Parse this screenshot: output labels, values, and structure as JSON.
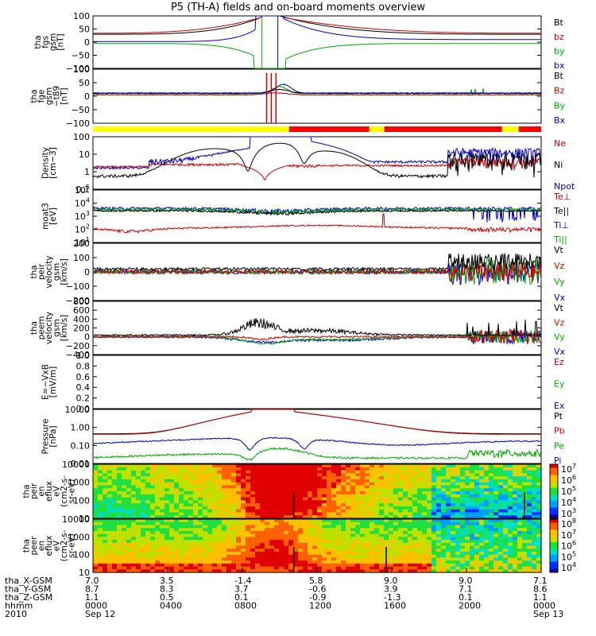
{
  "chart_data": {
    "type": "line",
    "title": "P5 (TH-A) fields and on-board moments overview",
    "panels": [
      {
        "id": "fgs",
        "ylabel": [
          "tha",
          "fgs",
          "gsm",
          "[nT]"
        ],
        "yticks": [
          "100",
          "50",
          "0",
          "−50",
          "−100"
        ],
        "ylim": [
          -100,
          100
        ],
        "scale": "linear",
        "legend": [
          {
            "label": "Bt",
            "color": "#000000"
          },
          {
            "label": "bz",
            "color": "#cc0000"
          },
          {
            "label": "by",
            "color": "#00aa00"
          },
          {
            "label": "bx",
            "color": "#0000cc"
          }
        ]
      },
      {
        "id": "fge",
        "ylabel": [
          "tha",
          "fge",
          "gsm",
          "−t89",
          "[nT]"
        ],
        "yticks": [
          "100",
          "50",
          "0",
          "−50",
          "−100"
        ],
        "ylim": [
          -120,
          100
        ],
        "scale": "linear",
        "legend": [
          {
            "label": "Bt",
            "color": "#000000"
          },
          {
            "label": "Bz",
            "color": "#cc0000"
          },
          {
            "label": "By",
            "color": "#00aa00"
          },
          {
            "label": "Bx",
            "color": "#0000cc"
          }
        ]
      },
      {
        "id": "density",
        "ylabel": [
          "Density",
          "[cm−3]"
        ],
        "yticks": [
          "100",
          "10",
          "1",
          "0.1"
        ],
        "ylim": [
          0.05,
          200
        ],
        "scale": "log",
        "legend": [
          {
            "label": "Ne",
            "color": "#cc0000"
          },
          {
            "label": "Ni",
            "color": "#000000"
          },
          {
            "label": "Npot",
            "color": "#0000cc"
          }
        ]
      },
      {
        "id": "temp",
        "ylabel": [
          "moat3",
          "[eV]"
        ],
        "yticks": [
          "10^5",
          "10^4",
          "10^3",
          "10^2",
          "10^1"
        ],
        "ylim": [
          10,
          100000
        ],
        "scale": "log",
        "legend": [
          {
            "label": "Te⊥",
            "color": "#cc0000"
          },
          {
            "label": "Te||",
            "color": "#000000"
          },
          {
            "label": "Ti⊥",
            "color": "#0000cc"
          },
          {
            "label": "Ti||",
            "color": "#00aa00"
          }
        ]
      },
      {
        "id": "peirv",
        "ylabel": [
          "tha",
          "peir",
          "velocity",
          "gsm",
          "[km/s]"
        ],
        "yticks": [
          "200",
          "100",
          "0",
          "−100",
          "−200"
        ],
        "ylim": [
          -200,
          200
        ],
        "scale": "linear",
        "legend": [
          {
            "label": "Vt",
            "color": "#000000"
          },
          {
            "label": "Vz",
            "color": "#cc0000"
          },
          {
            "label": "Vy",
            "color": "#00aa00"
          },
          {
            "label": "Vx",
            "color": "#0000cc"
          }
        ]
      },
      {
        "id": "peemv",
        "ylabel": [
          "tha",
          "peem",
          "velocity",
          "gsm",
          "[km/s]"
        ],
        "yticks": [
          "800",
          "600",
          "400",
          "200",
          "0",
          "−200",
          "−400"
        ],
        "ylim": [
          -400,
          800
        ],
        "scale": "linear",
        "legend": [
          {
            "label": "Vt",
            "color": "#000000"
          },
          {
            "label": "Vz",
            "color": "#cc0000"
          },
          {
            "label": "Vy",
            "color": "#00aa00"
          },
          {
            "label": "Vx",
            "color": "#0000cc"
          }
        ]
      },
      {
        "id": "efield",
        "ylabel": [
          "E=−VxB",
          "[mV/m]"
        ],
        "yticks": [
          "1.0",
          "0.8",
          "0.6",
          "0.4",
          "0.2",
          "0.0"
        ],
        "ylim": [
          0,
          1
        ],
        "scale": "linear",
        "legend": [
          {
            "label": "Ez",
            "color": "#cc0000"
          },
          {
            "label": "Ey",
            "color": "#00aa00"
          },
          {
            "label": "Ex",
            "color": "#0000cc"
          }
        ]
      },
      {
        "id": "pressure",
        "ylabel": [
          "Pressure",
          "[nPa]"
        ],
        "yticks": [
          "10.00",
          "1.00",
          "0.10",
          "0.01"
        ],
        "ylim": [
          0.005,
          30
        ],
        "scale": "log",
        "legend": [
          {
            "label": "Pt",
            "color": "#000000"
          },
          {
            "label": "Pb",
            "color": "#cc0000"
          },
          {
            "label": "Pe",
            "color": "#00aa00"
          },
          {
            "label": "Pi",
            "color": "#0000cc"
          }
        ]
      },
      {
        "id": "peir_spec",
        "ylabel": [
          "tha",
          "peir",
          "en",
          "eflux",
          "eV",
          "(cm2-s-",
          "sr-eV)"
        ],
        "yticks": [
          "10000",
          "1000",
          "100",
          "10"
        ],
        "colorbar": [
          "10^7",
          "10^6",
          "10^5",
          "10^4",
          "10^3"
        ]
      },
      {
        "id": "peer_spec",
        "ylabel": [
          "tha",
          "peer",
          "en",
          "eflux",
          "eV",
          "(cm2-s-",
          "sr-eV)"
        ],
        "yticks": [
          "10000",
          "1000",
          "100",
          "10"
        ],
        "colorbar": [
          "10^8",
          "10^7",
          "10^6",
          "10^5",
          "10^4"
        ]
      }
    ],
    "x_axis": {
      "rows": [
        {
          "label": "tha_X-GSM",
          "values": [
            "7.0",
            "3.5",
            "-1.4",
            "5.8",
            "9.0",
            "9.0",
            "7.1"
          ]
        },
        {
          "label": "tha_Y-GSM",
          "values": [
            "8.7",
            "8.3",
            "3.7",
            "-0.6",
            "3.9",
            "7.1",
            "8.6"
          ]
        },
        {
          "label": "tha_Z-GSM",
          "values": [
            "1.1",
            "0.5",
            "0.1",
            "-0.9",
            "-1.3",
            "0.1",
            "1.1"
          ]
        },
        {
          "label": "hhmm",
          "values": [
            "0000",
            "0400",
            "0800",
            "1200",
            "1600",
            "2000",
            "0000"
          ]
        },
        {
          "label": "2010",
          "values": [
            "Sep 12",
            "",
            "",
            "",
            "",
            "",
            "Sep 13"
          ]
        }
      ],
      "range_hours": [
        0,
        24
      ]
    }
  }
}
